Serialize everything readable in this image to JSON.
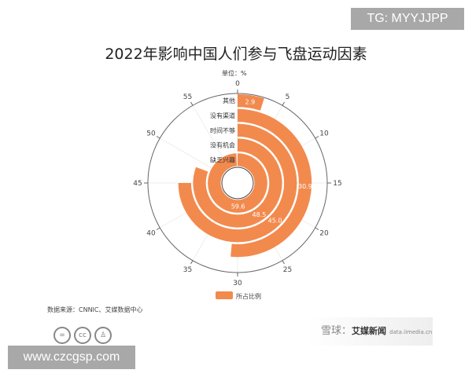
{
  "watermark_top": "TG: MYYJJPP",
  "watermark_bottom": "www.czcgsp.com",
  "watermark_right": {
    "text": "雪球：",
    "brand": "艾媒新闻",
    "url": "data.iimedia.cn"
  },
  "source": "数据来源：CNNIC、艾媒数据中心",
  "license_icons": [
    "nd-icon",
    "cc-icon",
    "by-icon"
  ],
  "chart_data": {
    "type": "polar-bar",
    "title": "2022年影响中国人们参与飞盘运动因素",
    "unit": "单位：%",
    "categories": [
      "缺乏兴趣",
      "没有机会",
      "时间不够",
      "没有渠道",
      "其他"
    ],
    "values": [
      59.6,
      48.5,
      45.0,
      30.9,
      2.9
    ],
    "angle_axis": {
      "min": 0,
      "max": 60,
      "ticks": [
        "0",
        "5",
        "10",
        "15",
        "20",
        "25",
        "30",
        "35",
        "40",
        "45",
        "50",
        "55"
      ]
    },
    "legend": {
      "name": "所占比例",
      "position": "bottom"
    },
    "color": "#f28a4e"
  }
}
